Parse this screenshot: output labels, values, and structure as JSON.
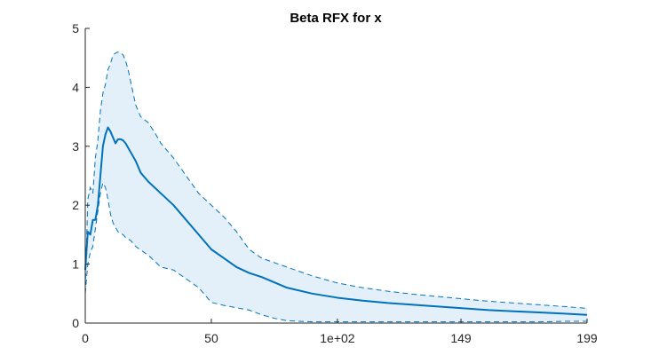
{
  "chart_data": {
    "type": "line",
    "title": "Beta RFX for x",
    "xlabel": "",
    "ylabel": "",
    "xlim": [
      0,
      199
    ],
    "ylim": [
      0,
      5
    ],
    "x_ticks": [
      0,
      50,
      100,
      149,
      199
    ],
    "x_tick_labels": [
      "0",
      "50",
      "1e+02",
      "149",
      "199"
    ],
    "y_ticks": [
      0,
      1,
      2,
      3,
      4,
      5
    ],
    "y_tick_labels": [
      "0",
      "1",
      "2",
      "3",
      "4",
      "5"
    ],
    "grid": false,
    "colors": {
      "line": "#0072BD",
      "band_fill": "#E3F0F9"
    },
    "series": [
      {
        "role": "mean",
        "x": [
          0,
          1,
          2,
          3,
          4,
          5,
          6,
          7,
          8,
          9,
          10,
          11,
          12,
          13,
          14,
          15,
          16,
          18,
          20,
          22,
          25,
          30,
          35,
          40,
          45,
          50,
          55,
          60,
          65,
          70,
          80,
          90,
          100,
          110,
          120,
          130,
          140,
          150,
          160,
          170,
          180,
          190,
          199
        ],
        "y": [
          0.9,
          1.55,
          1.5,
          1.75,
          1.75,
          2.0,
          2.5,
          3.0,
          3.2,
          3.32,
          3.25,
          3.15,
          3.05,
          3.12,
          3.12,
          3.1,
          3.05,
          2.9,
          2.75,
          2.55,
          2.4,
          2.2,
          2.0,
          1.75,
          1.5,
          1.25,
          1.1,
          0.95,
          0.85,
          0.78,
          0.6,
          0.5,
          0.43,
          0.38,
          0.34,
          0.31,
          0.28,
          0.25,
          0.22,
          0.2,
          0.18,
          0.16,
          0.14
        ]
      },
      {
        "role": "upper",
        "x": [
          0,
          1,
          2,
          3,
          4,
          5,
          6,
          7,
          8,
          9,
          10,
          11,
          12,
          13,
          14,
          15,
          16,
          17,
          18,
          19,
          20,
          22,
          25,
          28,
          30,
          35,
          40,
          45,
          50,
          55,
          60,
          65,
          70,
          80,
          90,
          100,
          110,
          120,
          130,
          140,
          150,
          160,
          170,
          180,
          190,
          199
        ],
        "y": [
          0.6,
          2.1,
          2.3,
          2.2,
          2.8,
          3.1,
          3.6,
          3.9,
          4.05,
          4.3,
          4.4,
          4.55,
          4.58,
          4.6,
          4.58,
          4.55,
          4.45,
          4.3,
          4.1,
          3.9,
          3.7,
          3.5,
          3.4,
          3.2,
          3.05,
          2.8,
          2.5,
          2.2,
          2.0,
          1.8,
          1.55,
          1.25,
          1.1,
          0.95,
          0.8,
          0.68,
          0.6,
          0.54,
          0.49,
          0.45,
          0.41,
          0.37,
          0.34,
          0.31,
          0.28,
          0.25
        ]
      },
      {
        "role": "lower",
        "x": [
          0,
          1,
          2,
          3,
          4,
          5,
          6,
          7,
          8,
          9,
          10,
          11,
          12,
          13,
          14,
          15,
          16,
          18,
          20,
          25,
          30,
          35,
          40,
          45,
          50,
          55,
          60,
          65,
          70,
          75,
          80,
          90,
          100,
          110,
          120,
          130,
          140,
          150,
          160,
          170,
          180,
          190,
          199
        ],
        "y": [
          0.5,
          1.0,
          1.2,
          1.3,
          1.6,
          1.9,
          2.2,
          2.38,
          2.3,
          2.1,
          1.85,
          1.7,
          1.62,
          1.55,
          1.52,
          1.5,
          1.45,
          1.4,
          1.3,
          1.15,
          0.95,
          0.9,
          0.75,
          0.6,
          0.35,
          0.3,
          0.26,
          0.22,
          0.14,
          0.08,
          0.04,
          0.02,
          0.02,
          0.02,
          0.02,
          0.02,
          0.02,
          0.02,
          0.02,
          0.02,
          0.02,
          0.03,
          0.03
        ]
      }
    ]
  }
}
